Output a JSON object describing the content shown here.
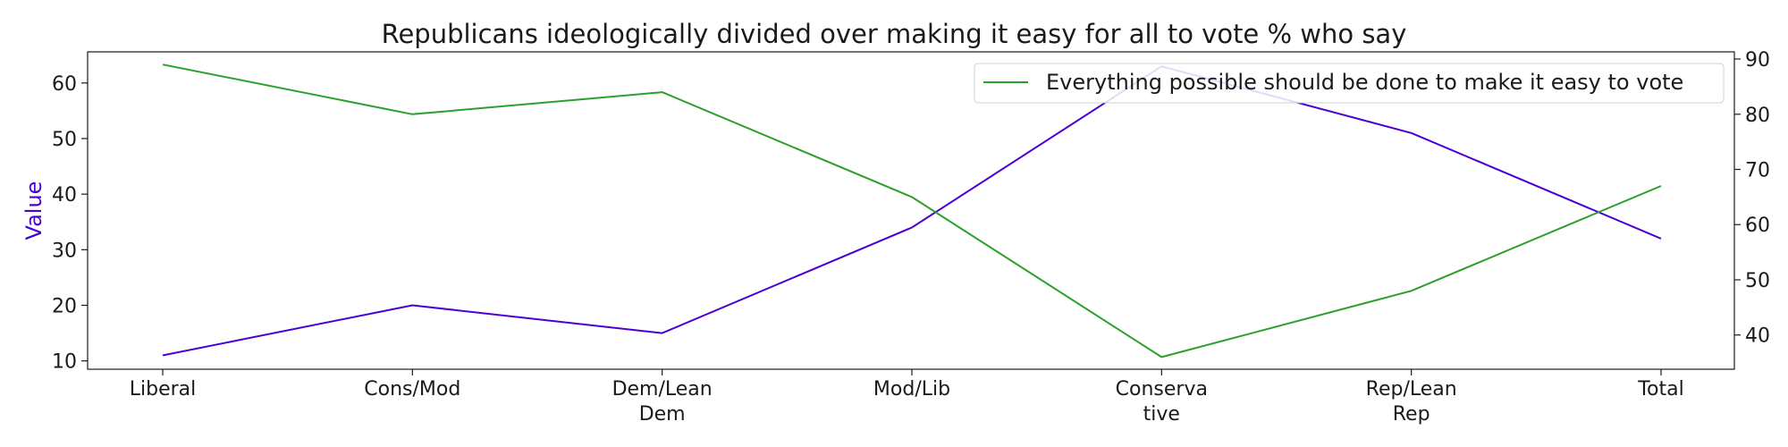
{
  "chart_data": {
    "type": "line",
    "title": "Republicans ideologically divided over making it easy for all to vote % who say",
    "categories": [
      [
        "Liberal"
      ],
      [
        "Cons/Mod"
      ],
      [
        "Dem/Lean",
        "Dem"
      ],
      [
        "Mod/Lib"
      ],
      [
        "Conserva",
        "tive"
      ],
      [
        "Rep/Lean",
        "Rep"
      ],
      [
        "Total"
      ]
    ],
    "y_left": {
      "label": "Value",
      "ylim": [
        8.5,
        65.6
      ],
      "ticks": [
        10,
        20,
        30,
        40,
        50,
        60
      ],
      "tick_labels": [
        "10",
        "20",
        "30",
        "40",
        "50",
        "60"
      ]
    },
    "y_right": {
      "label": "",
      "ylim": [
        33.8,
        91.3
      ],
      "ticks": [
        40,
        50,
        60,
        70,
        80,
        90
      ],
      "tick_labels": [
        "40",
        "50",
        "60",
        "70",
        "80",
        "90"
      ]
    },
    "series": [
      {
        "values": [
          11,
          20,
          15,
          34,
          63,
          51,
          32
        ],
        "axis": "left",
        "color": "#4b00d6"
      },
      {
        "name": "Everything possible should be done to make it easy to vote",
        "values": [
          89,
          80,
          84,
          65,
          36,
          48,
          67
        ],
        "axis": "right",
        "color": "#2ca02c"
      }
    ],
    "legend_position": "top-right",
    "grid": false
  }
}
